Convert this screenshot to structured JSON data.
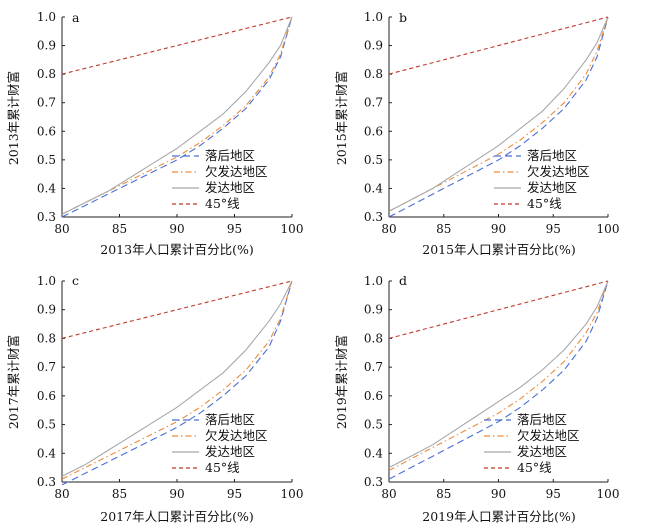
{
  "chart_data": [
    {
      "type": "line",
      "panel_label": "a",
      "xlabel": "2013年人口累计百分比(%)",
      "ylabel": "2013年累计财富",
      "xlim": [
        80,
        100
      ],
      "ylim": [
        0.3,
        1.0
      ],
      "xticks": [
        "80",
        "85",
        "90",
        "95",
        "100"
      ],
      "yticks": [
        "0.3",
        "0.4",
        "0.5",
        "0.6",
        "0.7",
        "0.8",
        "0.9",
        "1.0"
      ],
      "legend_position": "lower-right",
      "series": [
        {
          "name": "落后地区",
          "color": "#4a6fd4",
          "dash": "long-dash",
          "x": [
            80,
            82,
            84,
            86,
            88,
            90,
            92,
            94,
            96,
            98,
            99,
            100
          ],
          "y": [
            0.3,
            0.34,
            0.38,
            0.42,
            0.46,
            0.5,
            0.55,
            0.61,
            0.68,
            0.78,
            0.86,
            1.0
          ]
        },
        {
          "name": "欠发达地区",
          "color": "#ed8a3a",
          "dash": "dash-dot",
          "x": [
            80,
            82,
            84,
            86,
            88,
            90,
            92,
            94,
            96,
            98,
            99,
            100
          ],
          "y": [
            0.31,
            0.35,
            0.39,
            0.43,
            0.47,
            0.51,
            0.56,
            0.62,
            0.69,
            0.79,
            0.87,
            1.0
          ]
        },
        {
          "name": "发达地区",
          "color": "#a8a8a8",
          "dash": "solid",
          "x": [
            80,
            82,
            84,
            86,
            88,
            90,
            92,
            94,
            96,
            98,
            99,
            100
          ],
          "y": [
            0.31,
            0.35,
            0.39,
            0.44,
            0.49,
            0.54,
            0.6,
            0.66,
            0.74,
            0.84,
            0.9,
            1.0
          ]
        },
        {
          "name": "45°线",
          "color": "#c0392b",
          "dash": "short-dash",
          "x": [
            80,
            100
          ],
          "y": [
            0.8,
            1.0
          ]
        }
      ]
    },
    {
      "type": "line",
      "panel_label": "b",
      "xlabel": "2015年人口累计百分比(%)",
      "ylabel": "2015年累计财富",
      "xlim": [
        80,
        100
      ],
      "ylim": [
        0.3,
        1.0
      ],
      "xticks": [
        "80",
        "85",
        "90",
        "95",
        "100"
      ],
      "yticks": [
        "0.3",
        "0.4",
        "0.5",
        "0.6",
        "0.7",
        "0.8",
        "0.9",
        "1.0"
      ],
      "legend_position": "lower-right",
      "series": [
        {
          "name": "落后地区",
          "color": "#4a6fd4",
          "dash": "long-dash",
          "x": [
            80,
            82,
            84,
            86,
            88,
            90,
            92,
            94,
            96,
            98,
            99,
            100
          ],
          "y": [
            0.3,
            0.34,
            0.38,
            0.42,
            0.46,
            0.5,
            0.55,
            0.61,
            0.68,
            0.78,
            0.86,
            1.0
          ]
        },
        {
          "name": "欠发达地区",
          "color": "#ed8a3a",
          "dash": "dash-dot",
          "x": [
            80,
            82,
            84,
            86,
            88,
            90,
            92,
            94,
            96,
            98,
            99,
            100
          ],
          "y": [
            0.32,
            0.36,
            0.4,
            0.44,
            0.48,
            0.52,
            0.57,
            0.63,
            0.7,
            0.8,
            0.88,
            1.0
          ]
        },
        {
          "name": "发达地区",
          "color": "#a8a8a8",
          "dash": "solid",
          "x": [
            80,
            82,
            84,
            86,
            88,
            90,
            92,
            94,
            96,
            98,
            99,
            100
          ],
          "y": [
            0.32,
            0.36,
            0.4,
            0.45,
            0.5,
            0.55,
            0.61,
            0.67,
            0.75,
            0.85,
            0.91,
            1.0
          ]
        },
        {
          "name": "45°线",
          "color": "#c0392b",
          "dash": "short-dash",
          "x": [
            80,
            100
          ],
          "y": [
            0.8,
            1.0
          ]
        }
      ]
    },
    {
      "type": "line",
      "panel_label": "c",
      "xlabel": "2017年人口累计百分比(%)",
      "ylabel": "2017年累计财富",
      "xlim": [
        80,
        100
      ],
      "ylim": [
        0.3,
        1.0
      ],
      "xticks": [
        "80",
        "85",
        "90",
        "95",
        "100"
      ],
      "yticks": [
        "0.3",
        "0.4",
        "0.5",
        "0.6",
        "0.7",
        "0.8",
        "0.9",
        "1.0"
      ],
      "legend_position": "lower-right",
      "series": [
        {
          "name": "落后地区",
          "color": "#4a6fd4",
          "dash": "long-dash",
          "x": [
            80,
            82,
            84,
            86,
            88,
            90,
            92,
            94,
            96,
            98,
            99,
            100
          ],
          "y": [
            0.29,
            0.33,
            0.37,
            0.41,
            0.45,
            0.49,
            0.54,
            0.6,
            0.67,
            0.77,
            0.86,
            1.0
          ]
        },
        {
          "name": "欠发达地区",
          "color": "#ed8a3a",
          "dash": "dash-dot",
          "x": [
            80,
            82,
            84,
            86,
            88,
            90,
            92,
            94,
            96,
            98,
            99,
            100
          ],
          "y": [
            0.31,
            0.35,
            0.39,
            0.43,
            0.47,
            0.51,
            0.56,
            0.62,
            0.69,
            0.79,
            0.87,
            1.0
          ]
        },
        {
          "name": "发达地区",
          "color": "#a8a8a8",
          "dash": "solid",
          "x": [
            80,
            82,
            84,
            86,
            88,
            90,
            92,
            94,
            96,
            98,
            99,
            100
          ],
          "y": [
            0.32,
            0.36,
            0.41,
            0.46,
            0.51,
            0.56,
            0.62,
            0.68,
            0.76,
            0.86,
            0.92,
            1.0
          ]
        },
        {
          "name": "45°线",
          "color": "#c0392b",
          "dash": "short-dash",
          "x": [
            80,
            100
          ],
          "y": [
            0.8,
            1.0
          ]
        }
      ]
    },
    {
      "type": "line",
      "panel_label": "d",
      "xlabel": "2019年人口累计百分比(%)",
      "ylabel": "2019年累计财富",
      "xlim": [
        80,
        100
      ],
      "ylim": [
        0.3,
        1.0
      ],
      "xticks": [
        "80",
        "85",
        "90",
        "95",
        "100"
      ],
      "yticks": [
        "0.3",
        "0.4",
        "0.5",
        "0.6",
        "0.7",
        "0.8",
        "0.9",
        "1.0"
      ],
      "legend_position": "lower-right",
      "series": [
        {
          "name": "落后地区",
          "color": "#4a6fd4",
          "dash": "long-dash",
          "x": [
            80,
            82,
            84,
            86,
            88,
            90,
            92,
            94,
            96,
            98,
            99,
            100
          ],
          "y": [
            0.31,
            0.35,
            0.39,
            0.43,
            0.47,
            0.51,
            0.56,
            0.62,
            0.69,
            0.79,
            0.87,
            1.0
          ]
        },
        {
          "name": "欠发达地区",
          "color": "#ed8a3a",
          "dash": "dash-dot",
          "x": [
            80,
            82,
            84,
            86,
            88,
            90,
            92,
            94,
            96,
            98,
            99,
            100
          ],
          "y": [
            0.34,
            0.38,
            0.42,
            0.46,
            0.5,
            0.54,
            0.59,
            0.65,
            0.72,
            0.82,
            0.89,
            1.0
          ]
        },
        {
          "name": "发达地区",
          "color": "#a8a8a8",
          "dash": "solid",
          "x": [
            80,
            82,
            84,
            86,
            88,
            90,
            92,
            94,
            96,
            98,
            99,
            100
          ],
          "y": [
            0.35,
            0.39,
            0.43,
            0.48,
            0.53,
            0.58,
            0.63,
            0.69,
            0.76,
            0.85,
            0.91,
            1.0
          ]
        },
        {
          "name": "45°线",
          "color": "#c0392b",
          "dash": "short-dash",
          "x": [
            80,
            100
          ],
          "y": [
            0.8,
            1.0
          ]
        }
      ]
    }
  ]
}
